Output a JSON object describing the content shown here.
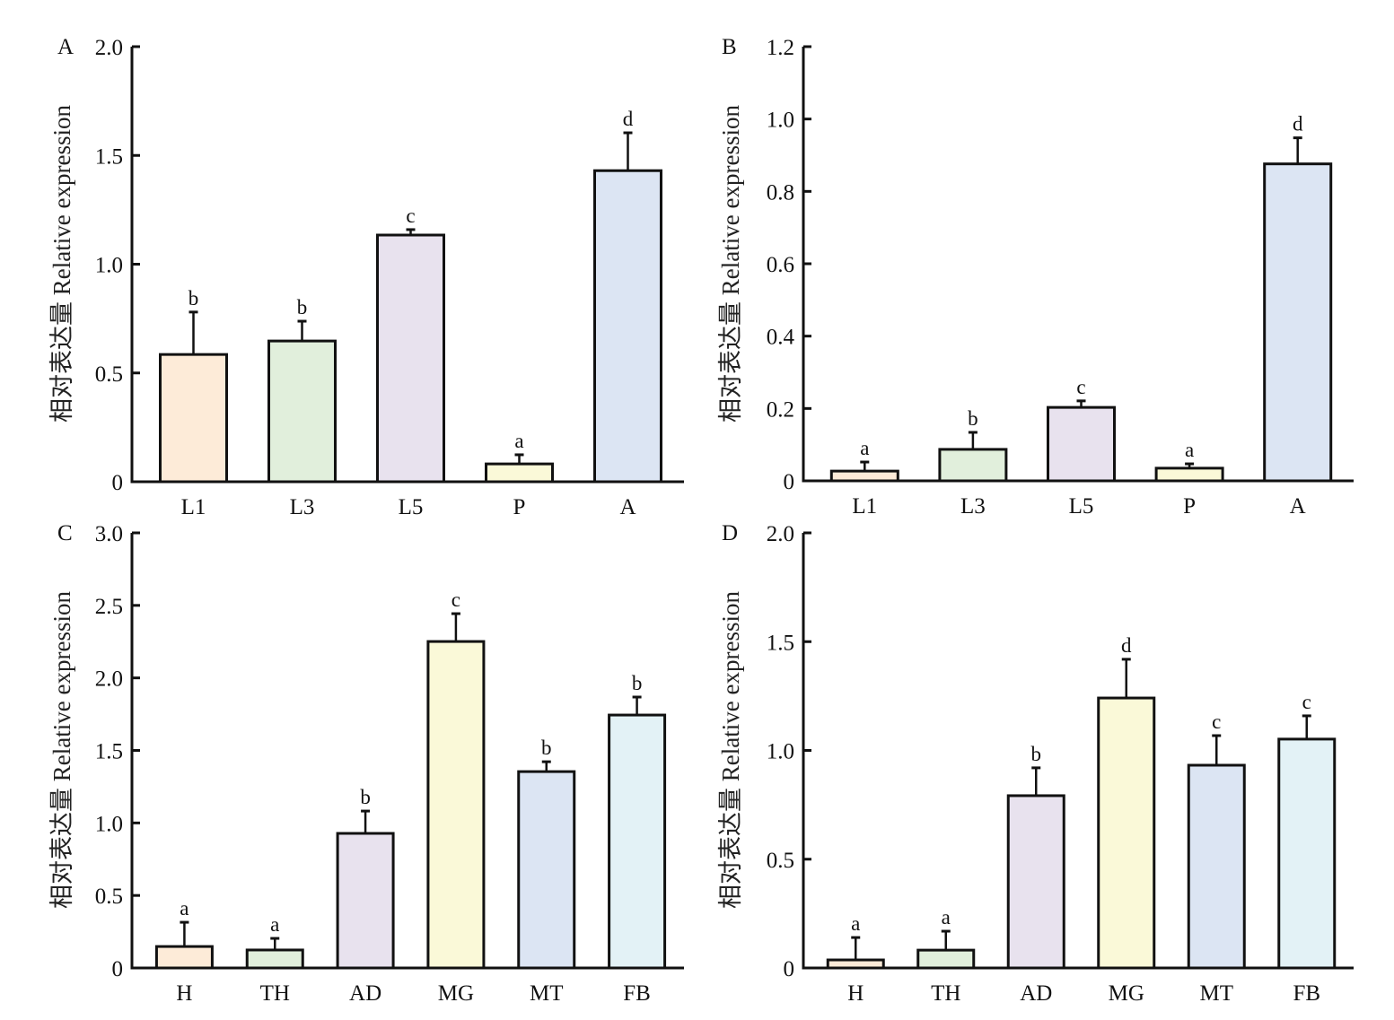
{
  "chart_data": [
    {
      "type": "bar",
      "panel": "A",
      "categories": [
        "L1",
        "L3",
        "L5",
        "P",
        "A"
      ],
      "values": [
        0.585,
        0.647,
        1.134,
        0.082,
        1.43
      ],
      "error_upper": [
        0.78,
        0.738,
        1.159,
        0.124,
        1.604
      ],
      "significance": [
        "b",
        "b",
        "c",
        "a",
        "d"
      ],
      "colors": [
        "#FDEBD8",
        "#E1EFDC",
        "#E8E2EE",
        "#FAF9D8",
        "#DCE5F3"
      ],
      "ylabel": "相对表达量 Relative expression",
      "xlabel": "",
      "ylim": [
        0,
        2.0
      ],
      "yticks": [
        0,
        0.5,
        1.0,
        1.5,
        2.0
      ],
      "ytick_labels": [
        "0",
        "0.5",
        "1.0",
        "1.5",
        "2.0"
      ],
      "grid": false
    },
    {
      "type": "bar",
      "panel": "B",
      "categories": [
        "L1",
        "L3",
        "L5",
        "P",
        "A"
      ],
      "values": [
        0.027,
        0.087,
        0.203,
        0.035,
        0.876
      ],
      "error_upper": [
        0.052,
        0.134,
        0.221,
        0.047,
        0.948
      ],
      "significance": [
        "a",
        "b",
        "c",
        "a",
        "d"
      ],
      "colors": [
        "#FDEBD8",
        "#E1EFDC",
        "#E8E2EE",
        "#FAF9D8",
        "#DCE5F3"
      ],
      "ylabel": "相对表达量 Relative expression",
      "xlabel": "",
      "ylim": [
        0,
        1.2
      ],
      "yticks": [
        0,
        0.2,
        0.4,
        0.6,
        0.8,
        1.0,
        1.2
      ],
      "ytick_labels": [
        "0",
        "0.2",
        "0.4",
        "0.6",
        "0.8",
        "1.0",
        "1.2"
      ],
      "grid": false
    },
    {
      "type": "bar",
      "panel": "C",
      "categories": [
        "H",
        "TH",
        "AD",
        "MG",
        "MT",
        "FB"
      ],
      "values": [
        0.148,
        0.124,
        0.928,
        2.251,
        1.354,
        1.744
      ],
      "error_upper": [
        0.315,
        0.204,
        1.082,
        2.443,
        1.422,
        1.868
      ],
      "significance": [
        "a",
        "a",
        "b",
        "c",
        "b",
        "b"
      ],
      "colors": [
        "#FDEBD8",
        "#E1EFDC",
        "#E8E2EE",
        "#FAF9D8",
        "#DCE5F3",
        "#E3F2F6"
      ],
      "ylabel": "相对表达量 Relative expression",
      "xlabel": "",
      "ylim": [
        0,
        3.0
      ],
      "yticks": [
        0,
        0.5,
        1.0,
        1.5,
        2.0,
        2.5,
        3.0
      ],
      "ytick_labels": [
        "0",
        "0.5",
        "1.0",
        "1.5",
        "2.0",
        "2.5",
        "3.0"
      ],
      "grid": false
    },
    {
      "type": "bar",
      "panel": "D",
      "categories": [
        "H",
        "TH",
        "AD",
        "MG",
        "MT",
        "FB"
      ],
      "values": [
        0.037,
        0.082,
        0.792,
        1.241,
        0.932,
        1.052
      ],
      "error_upper": [
        0.14,
        0.169,
        0.92,
        1.419,
        1.068,
        1.159
      ],
      "significance": [
        "a",
        "a",
        "b",
        "d",
        "c",
        "c"
      ],
      "colors": [
        "#FDEBD8",
        "#E1EFDC",
        "#E8E2EE",
        "#FAF9D8",
        "#DCE5F3",
        "#E3F2F6"
      ],
      "ylabel": "相对表达量 Relative expression",
      "xlabel": "",
      "ylim": [
        0,
        2.0
      ],
      "yticks": [
        0,
        0.5,
        1.0,
        1.5,
        2.0
      ],
      "ytick_labels": [
        "0",
        "0.5",
        "1.0",
        "1.5",
        "2.0"
      ],
      "grid": false
    }
  ]
}
